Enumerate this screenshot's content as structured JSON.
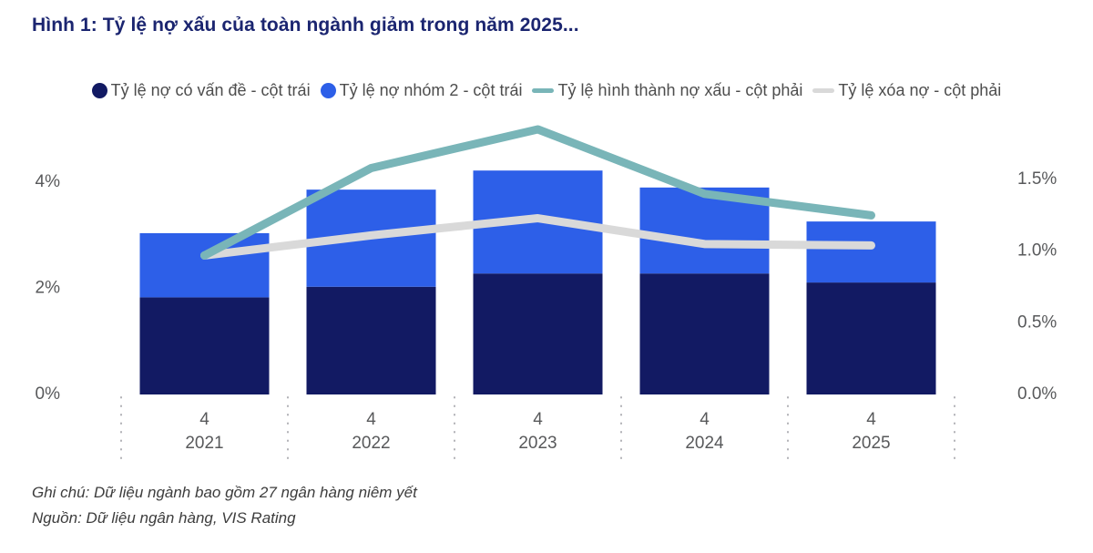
{
  "title": "Hình 1: Tỷ lệ nợ xấu của toàn ngành giảm trong năm 2025...",
  "colors": {
    "title_navy": "#1b2570",
    "bar_navy": "#121a63",
    "bar_blue": "#2d5fe8",
    "line_teal": "#79b5b8",
    "line_gray": "#d9d9d9",
    "axis_text": "#58595b",
    "separator_dots": "#b0b0b5",
    "note_text": "#3d3d3d"
  },
  "notes": {
    "line1": "Ghi chú: Dữ liệu ngành bao gồm 27 ngân hàng niêm yết",
    "line2": "Nguồn: Dữ liệu ngân hàng, VIS Rating"
  },
  "chart_data": {
    "type": "bar",
    "subtype": "stacked-bars-with-line-overlays",
    "grid": "off",
    "legend_position": "top-center",
    "categories": [
      {
        "quarter": "4",
        "year": "2021"
      },
      {
        "quarter": "4",
        "year": "2022"
      },
      {
        "quarter": "4",
        "year": "2023"
      },
      {
        "quarter": "4",
        "year": "2024"
      },
      {
        "quarter": "4",
        "year": "2025"
      }
    ],
    "series": [
      {
        "name": "Tỷ lệ nợ có vấn đề - cột trái",
        "type": "bar-stack",
        "axis": "left",
        "marker": "circle",
        "color": "#121a63",
        "values": [
          1.83,
          2.03,
          2.28,
          2.28,
          2.11
        ]
      },
      {
        "name": "Tỷ lệ nợ nhóm 2 - cột trái",
        "type": "bar-stack",
        "axis": "left",
        "marker": "circle",
        "color": "#2d5fe8",
        "values": [
          1.21,
          1.83,
          1.94,
          1.62,
          1.15
        ]
      },
      {
        "name": "Tỷ lệ hình thành nợ xấu - cột phải",
        "type": "line",
        "axis": "right",
        "marker": "dash",
        "color": "#79b5b8",
        "values": [
          0.97,
          1.58,
          1.85,
          1.4,
          1.25
        ]
      },
      {
        "name": "Tỷ lệ xóa nợ - cột phải",
        "type": "line",
        "axis": "right",
        "marker": "dash",
        "color": "#d9d9d9",
        "values": [
          0.97,
          1.11,
          1.23,
          1.05,
          1.04
        ]
      }
    ],
    "left_axis": {
      "ticks": [
        "0%",
        "2%",
        "4%"
      ],
      "values": [
        0,
        2,
        4
      ],
      "ylim": [
        0,
        4
      ]
    },
    "right_axis": {
      "ticks": [
        "0.0%",
        "0.5%",
        "1.0%",
        "1.5%"
      ],
      "values": [
        0,
        0.5,
        1.0,
        1.5
      ],
      "ylim": [
        0,
        1.5
      ]
    }
  }
}
